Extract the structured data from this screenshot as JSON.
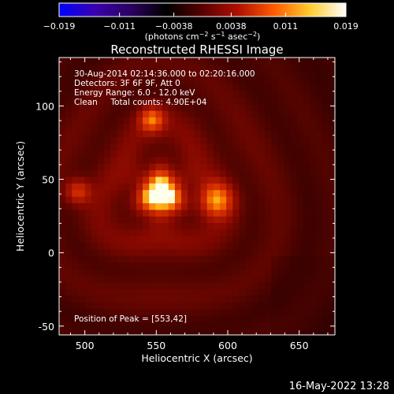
{
  "colorbar": {
    "tick_labels": [
      "−0.019",
      "−0.011",
      "−0.0038",
      "0.0038",
      "0.011",
      "0.019"
    ],
    "tick_values": [
      -0.019,
      -0.011,
      -0.0038,
      0.0038,
      0.011,
      0.019
    ],
    "range": [
      -0.019,
      0.019
    ],
    "unit_prefix": "(photons cm",
    "unit_sup1": "−2",
    "unit_mid1": " s",
    "unit_sup2": "−1",
    "unit_mid2": " asec",
    "unit_sup3": "−2",
    "unit_suffix": ")",
    "gradient": [
      "#0000ff",
      "#3a00b0",
      "#2a0060",
      "#000000",
      "#5a0000",
      "#b01000",
      "#ff5a00",
      "#ffcc30",
      "#ffffff"
    ]
  },
  "chart_data": {
    "type": "heatmap",
    "title": "Reconstructed RHESSI Image",
    "xlabel": "Heliocentric X (arcsec)",
    "ylabel": "Heliocentric Y (arcsec)",
    "xlim": [
      482,
      675
    ],
    "ylim": [
      -56,
      133
    ],
    "x_ticks": [
      500,
      550,
      600,
      650
    ],
    "y_ticks": [
      -50,
      0,
      50,
      100
    ],
    "annotations": [
      "30-Aug-2014 02:14:36.000 to 02:20:16.000",
      "Detectors: 3F 6F 9F, Att 0",
      "Energy Range: 6.0 - 12.0 keV",
      "Clean     Total counts: 4.90E+04"
    ],
    "peak_label": "Position of Peak = [553,42]",
    "peak": [
      553,
      42
    ],
    "sources": [
      {
        "x": 553,
        "y": 40,
        "value": 0.019
      },
      {
        "x": 592,
        "y": 36,
        "value": 0.011
      },
      {
        "x": 547,
        "y": 91,
        "value": 0.01
      },
      {
        "x": 495,
        "y": 42,
        "value": 0.008
      }
    ],
    "background_value": 0.006
  },
  "footer": {
    "timestamp": "16-May-2022 13:28"
  }
}
